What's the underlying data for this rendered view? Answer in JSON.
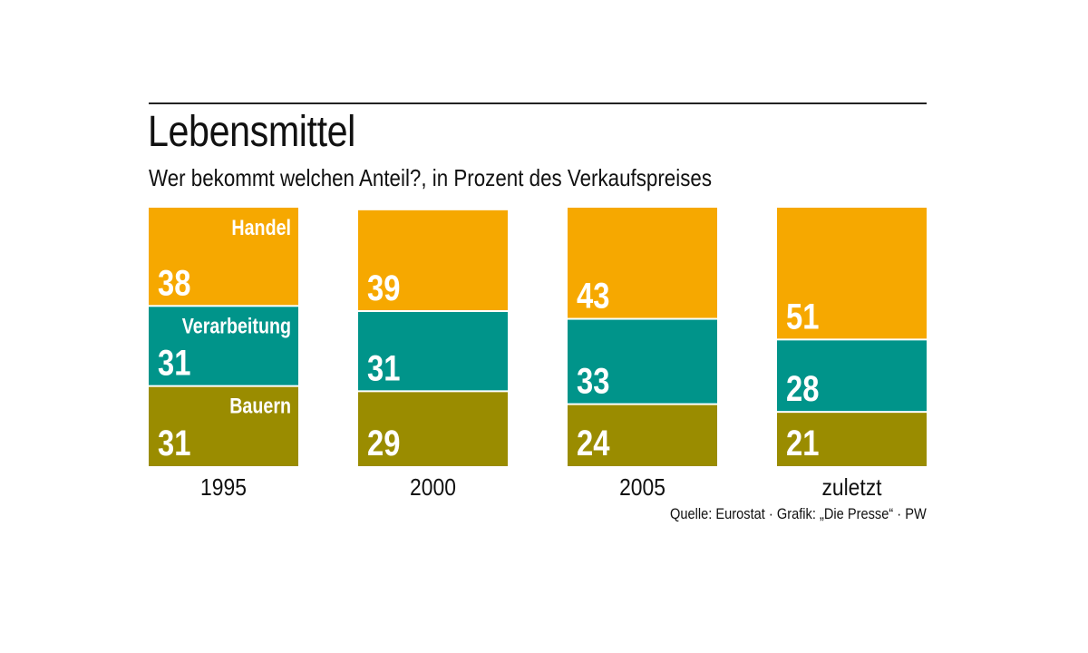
{
  "chart_data": {
    "type": "bar",
    "stacked": true,
    "title": "Lebensmittel",
    "subtitle": "Wer bekommt welchen Anteil?, in Prozent des Verkaufspreises",
    "categories": [
      "1995",
      "2000",
      "2005",
      "zuletzt"
    ],
    "series": [
      {
        "name": "Handel",
        "color": "#f6a800",
        "values": [
          38,
          39,
          43,
          51
        ]
      },
      {
        "name": "Verarbeitung",
        "color": "#00948a",
        "values": [
          31,
          31,
          33,
          28
        ]
      },
      {
        "name": "Bauern",
        "color": "#9a8c00",
        "values": [
          31,
          29,
          24,
          21
        ]
      }
    ],
    "source": "Quelle: Eurostat · Grafik: „Die Presse“ · PW"
  }
}
